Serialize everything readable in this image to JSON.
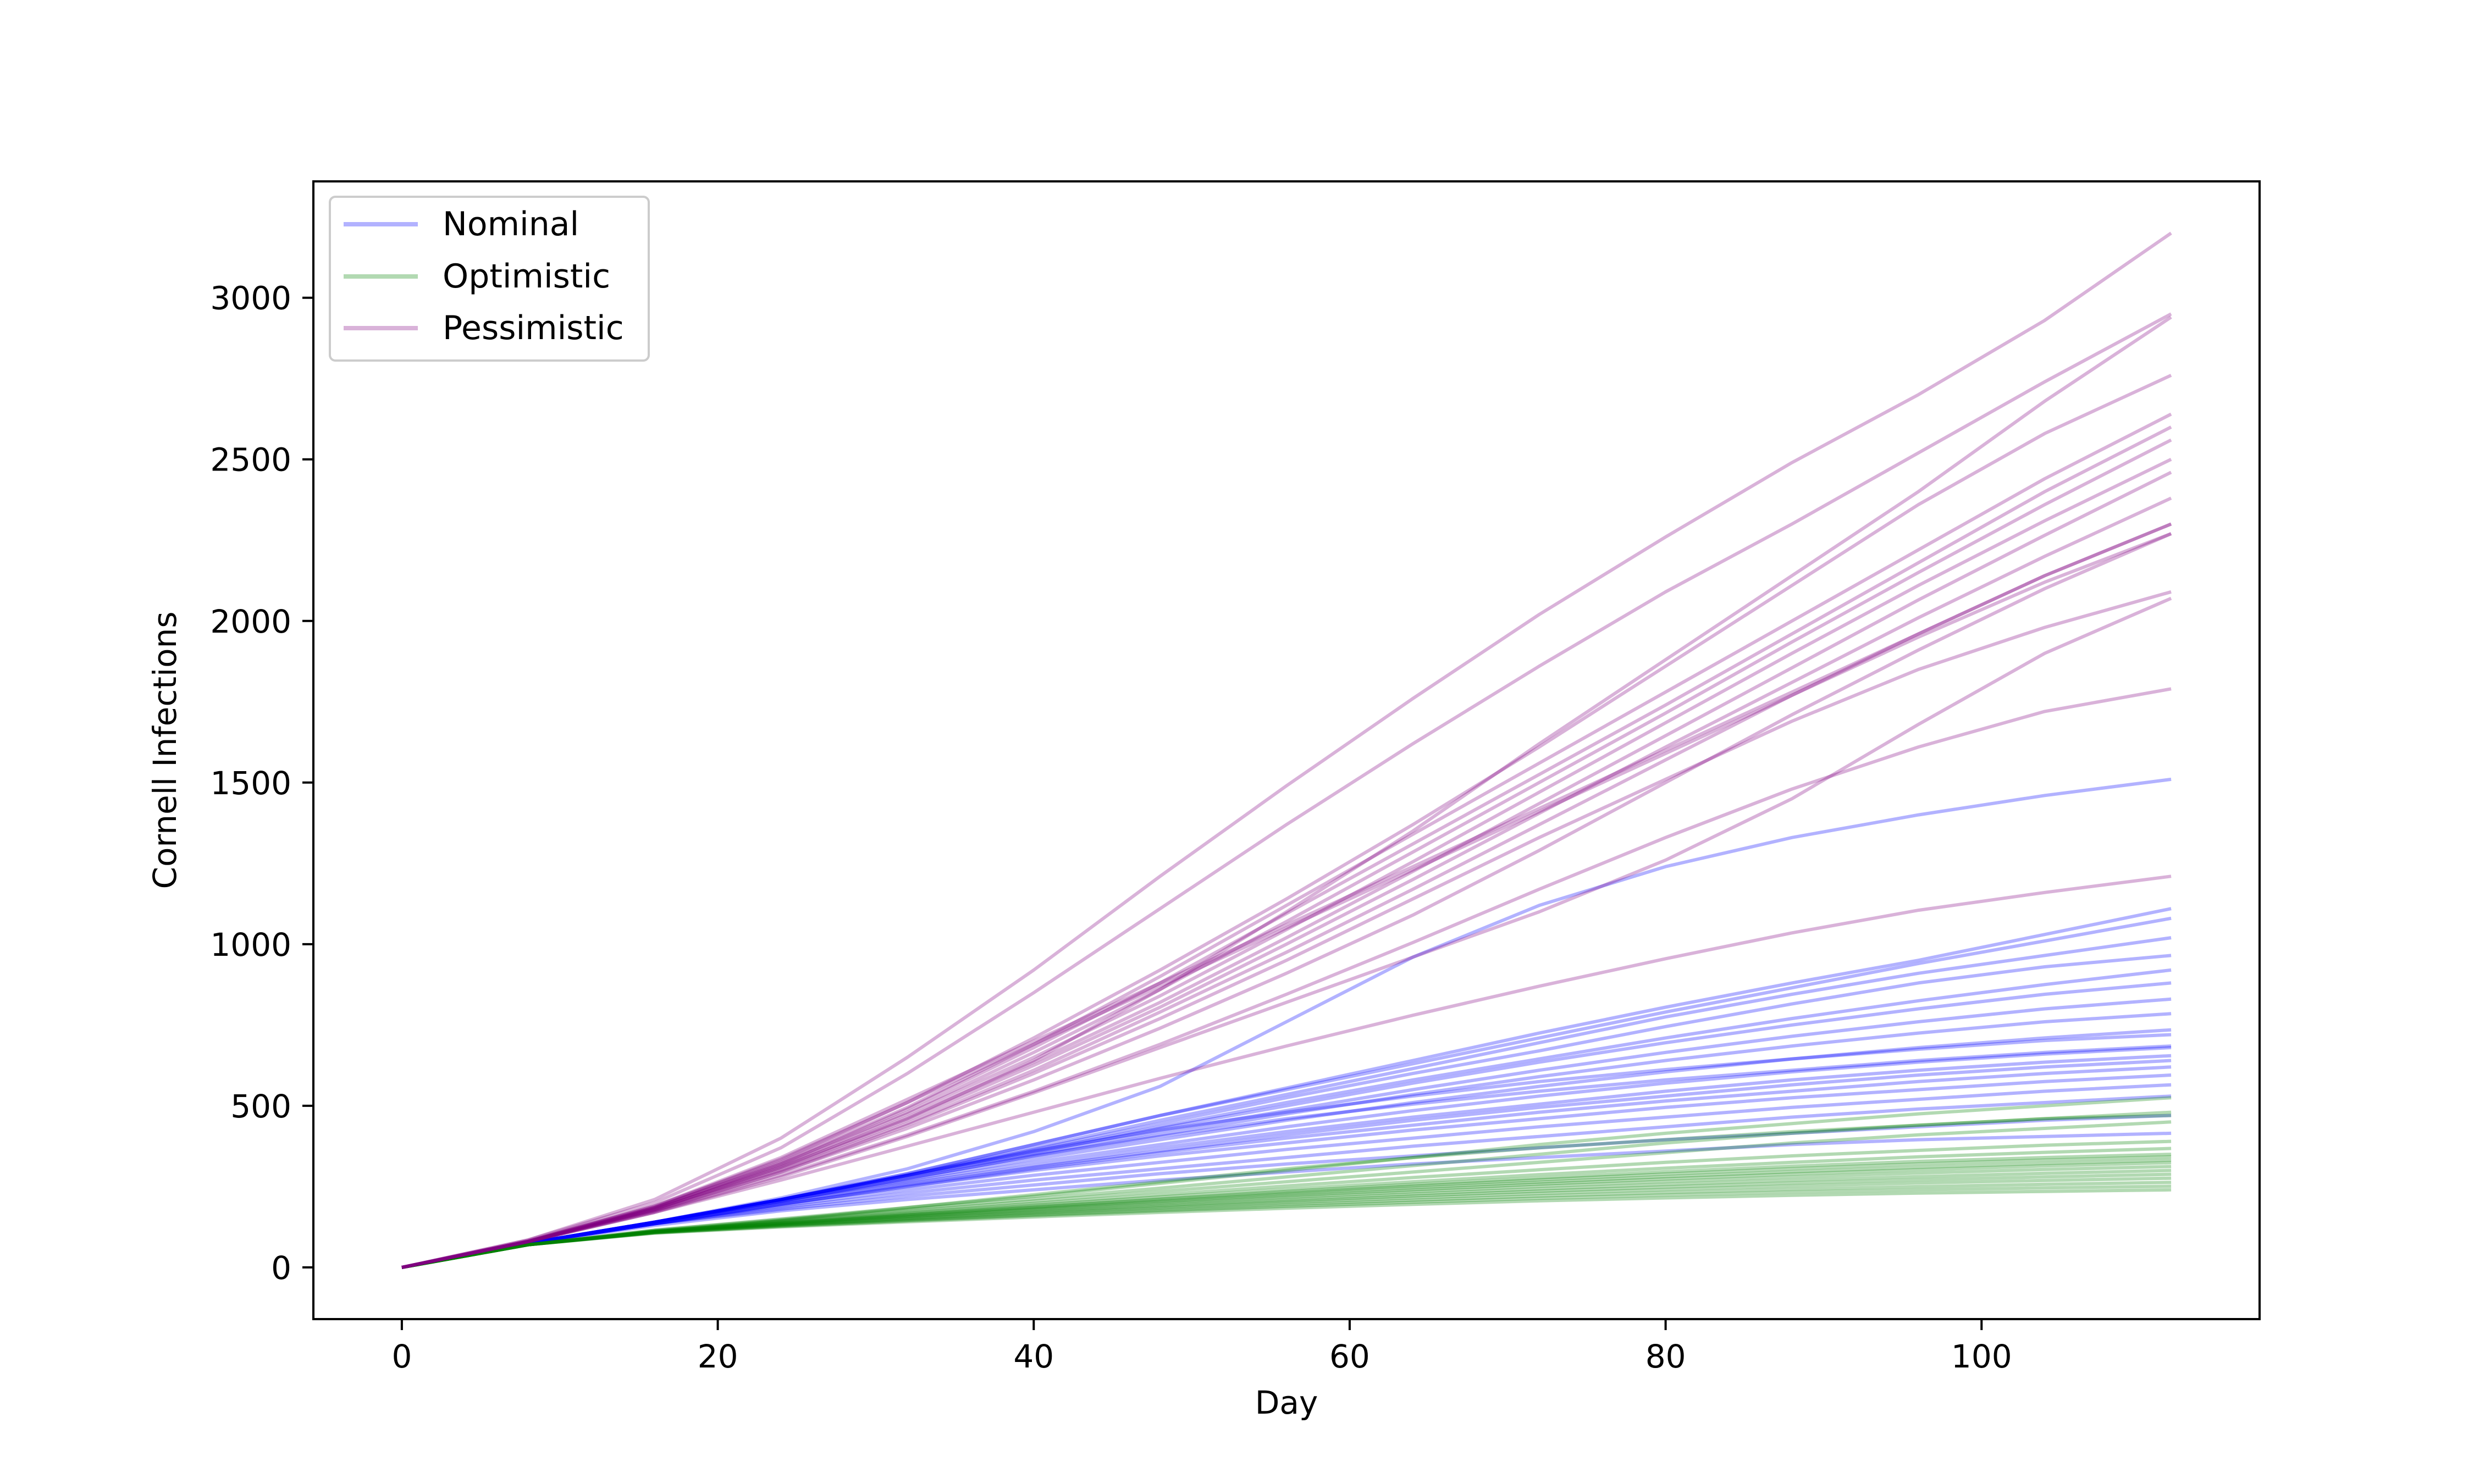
{
  "chart_data": {
    "type": "line",
    "title": "",
    "xlabel": "Day",
    "ylabel": "Cornell Infections",
    "xlim": [
      -5.6,
      117.6
    ],
    "ylim": [
      -160,
      3360
    ],
    "xticks": [
      0,
      20,
      40,
      60,
      80,
      100
    ],
    "yticks": [
      0,
      500,
      1000,
      1500,
      2000,
      2500,
      3000
    ],
    "grid": false,
    "legend_position": "top-left",
    "x": [
      0,
      8,
      16,
      24,
      32,
      40,
      48,
      56,
      64,
      72,
      80,
      88,
      96,
      104,
      112
    ],
    "series": [
      {
        "name": "Nominal",
        "color": "#0000ff",
        "lines": [
          [
            0,
            75,
            140,
            210,
            285,
            360,
            425,
            480,
            530,
            575,
            612,
            645,
            675,
            702,
            720
          ],
          [
            0,
            75,
            140,
            205,
            275,
            345,
            405,
            460,
            505,
            545,
            580,
            610,
            640,
            665,
            685
          ],
          [
            0,
            75,
            140,
            210,
            290,
            380,
            470,
            555,
            640,
            725,
            805,
            880,
            950,
            1030,
            1110
          ],
          [
            0,
            75,
            140,
            210,
            290,
            380,
            470,
            550,
            630,
            710,
            790,
            865,
            940,
            1010,
            1080
          ],
          [
            0,
            75,
            140,
            210,
            285,
            370,
            455,
            535,
            615,
            695,
            775,
            845,
            910,
            965,
            1020
          ],
          [
            0,
            75,
            140,
            210,
            285,
            365,
            445,
            525,
            600,
            670,
            745,
            815,
            880,
            930,
            965
          ],
          [
            0,
            75,
            140,
            210,
            285,
            360,
            435,
            510,
            580,
            645,
            710,
            770,
            825,
            875,
            920
          ],
          [
            0,
            75,
            140,
            210,
            285,
            355,
            430,
            500,
            570,
            635,
            695,
            750,
            800,
            845,
            880
          ],
          [
            0,
            75,
            140,
            210,
            280,
            350,
            420,
            485,
            550,
            610,
            665,
            715,
            760,
            800,
            830
          ],
          [
            0,
            75,
            140,
            205,
            275,
            345,
            410,
            475,
            535,
            590,
            640,
            685,
            725,
            760,
            785
          ],
          [
            0,
            75,
            140,
            205,
            270,
            335,
            395,
            455,
            510,
            560,
            605,
            645,
            680,
            710,
            735
          ],
          [
            0,
            75,
            140,
            205,
            265,
            325,
            380,
            435,
            485,
            530,
            570,
            605,
            635,
            660,
            680
          ],
          [
            0,
            75,
            135,
            200,
            260,
            315,
            370,
            420,
            465,
            505,
            545,
            580,
            610,
            635,
            655
          ],
          [
            0,
            75,
            135,
            195,
            255,
            310,
            360,
            410,
            455,
            495,
            530,
            565,
            595,
            620,
            640
          ],
          [
            0,
            75,
            135,
            195,
            250,
            305,
            355,
            400,
            440,
            480,
            515,
            545,
            575,
            600,
            620
          ],
          [
            0,
            75,
            135,
            195,
            250,
            300,
            345,
            385,
            425,
            460,
            495,
            525,
            550,
            575,
            595
          ],
          [
            0,
            75,
            135,
            190,
            240,
            285,
            325,
            365,
            400,
            435,
            465,
            495,
            520,
            545,
            565
          ],
          [
            0,
            75,
            135,
            185,
            230,
            270,
            305,
            340,
            375,
            405,
            435,
            465,
            490,
            510,
            530
          ],
          [
            0,
            75,
            135,
            180,
            220,
            255,
            290,
            320,
            345,
            370,
            395,
            415,
            435,
            455,
            470
          ],
          [
            0,
            75,
            130,
            175,
            210,
            240,
            270,
            295,
            320,
            340,
            360,
            380,
            395,
            405,
            415
          ],
          [
            0,
            75,
            140,
            215,
            305,
            420,
            560,
            760,
            960,
            1120,
            1240,
            1330,
            1400,
            1460,
            1510
          ]
        ]
      },
      {
        "name": "Optimistic",
        "color": "#008000",
        "lines": [
          [
            0,
            70,
            115,
            150,
            185,
            220,
            260,
            300,
            340,
            380,
            415,
            445,
            475,
            500,
            525
          ],
          [
            0,
            70,
            115,
            148,
            180,
            212,
            245,
            280,
            315,
            350,
            385,
            415,
            440,
            460,
            480
          ],
          [
            0,
            70,
            113,
            145,
            175,
            205,
            235,
            265,
            295,
            325,
            355,
            385,
            410,
            430,
            450
          ],
          [
            0,
            70,
            112,
            142,
            170,
            198,
            225,
            252,
            278,
            302,
            325,
            345,
            362,
            378,
            390
          ],
          [
            0,
            70,
            112,
            140,
            167,
            193,
            218,
            242,
            265,
            287,
            307,
            325,
            342,
            356,
            368
          ],
          [
            0,
            70,
            111,
            138,
            164,
            188,
            212,
            235,
            257,
            277,
            296,
            313,
            328,
            340,
            350
          ],
          [
            0,
            70,
            111,
            137,
            162,
            186,
            209,
            231,
            252,
            271,
            289,
            305,
            320,
            332,
            342
          ],
          [
            0,
            70,
            110,
            136,
            160,
            183,
            205,
            226,
            246,
            264,
            281,
            296,
            310,
            322,
            332
          ],
          [
            0,
            70,
            110,
            135,
            158,
            180,
            201,
            221,
            240,
            258,
            274,
            289,
            302,
            314,
            324
          ],
          [
            0,
            70,
            109,
            134,
            156,
            177,
            197,
            216,
            234,
            251,
            266,
            280,
            292,
            303,
            312
          ],
          [
            0,
            70,
            109,
            132,
            153,
            173,
            192,
            210,
            227,
            243,
            257,
            270,
            281,
            291,
            300
          ],
          [
            0,
            70,
            108,
            131,
            151,
            170,
            188,
            205,
            221,
            236,
            249,
            261,
            271,
            280,
            288
          ],
          [
            0,
            70,
            108,
            130,
            149,
            167,
            184,
            200,
            215,
            229,
            241,
            252,
            261,
            269,
            276
          ],
          [
            0,
            70,
            107,
            128,
            146,
            163,
            179,
            194,
            208,
            221,
            232,
            242,
            250,
            257,
            263
          ],
          [
            0,
            70,
            107,
            127,
            144,
            160,
            175,
            189,
            202,
            214,
            224,
            233,
            240,
            246,
            251
          ],
          [
            0,
            70,
            106,
            125,
            141,
            156,
            170,
            183,
            195,
            206,
            215,
            223,
            230,
            235,
            240
          ],
          [
            0,
            70,
            110,
            145,
            185,
            225,
            265,
            305,
            340,
            370,
            395,
            420,
            440,
            460,
            470
          ]
        ]
      },
      {
        "name": "Pessimistic",
        "color": "#800080",
        "lines": [
          [
            0,
            85,
            210,
            400,
            650,
            920,
            1210,
            1490,
            1760,
            2020,
            2260,
            2490,
            2700,
            2930,
            3200
          ],
          [
            0,
            85,
            200,
            370,
            600,
            850,
            1110,
            1370,
            1620,
            1860,
            2090,
            2300,
            2520,
            2740,
            2950
          ],
          [
            0,
            80,
            180,
            310,
            460,
            640,
            860,
            1100,
            1350,
            1620,
            1880,
            2140,
            2400,
            2680,
            2940
          ],
          [
            0,
            80,
            190,
            330,
            510,
            710,
            920,
            1140,
            1370,
            1610,
            1860,
            2110,
            2360,
            2580,
            2760
          ],
          [
            0,
            80,
            185,
            325,
            495,
            690,
            900,
            1120,
            1340,
            1560,
            1780,
            2000,
            2220,
            2440,
            2640
          ],
          [
            0,
            80,
            185,
            320,
            490,
            680,
            880,
            1095,
            1310,
            1525,
            1740,
            1960,
            2180,
            2400,
            2600
          ],
          [
            0,
            80,
            185,
            320,
            480,
            665,
            860,
            1070,
            1285,
            1500,
            1715,
            1935,
            2150,
            2360,
            2560
          ],
          [
            0,
            80,
            182,
            315,
            475,
            650,
            840,
            1045,
            1255,
            1470,
            1685,
            1900,
            2110,
            2310,
            2500
          ],
          [
            0,
            80,
            180,
            310,
            465,
            635,
            820,
            1020,
            1225,
            1435,
            1645,
            1855,
            2065,
            2265,
            2460
          ],
          [
            0,
            80,
            180,
            305,
            455,
            625,
            805,
            1000,
            1200,
            1405,
            1610,
            1810,
            2010,
            2200,
            2380
          ],
          [
            0,
            80,
            178,
            300,
            445,
            610,
            790,
            975,
            1170,
            1370,
            1570,
            1770,
            1960,
            2140,
            2300
          ],
          [
            0,
            80,
            175,
            295,
            430,
            580,
            740,
            910,
            1090,
            1290,
            1500,
            1710,
            1910,
            2100,
            2270
          ],
          [
            0,
            80,
            175,
            295,
            440,
            600,
            770,
            950,
            1140,
            1330,
            1510,
            1690,
            1850,
            1980,
            2090
          ],
          [
            0,
            80,
            170,
            280,
            405,
            540,
            680,
            820,
            960,
            1100,
            1260,
            1450,
            1680,
            1900,
            2070
          ],
          [
            0,
            80,
            172,
            285,
            410,
            545,
            690,
            845,
            1005,
            1170,
            1330,
            1480,
            1610,
            1720,
            1790
          ],
          [
            0,
            80,
            170,
            270,
            375,
            480,
            585,
            685,
            780,
            870,
            955,
            1035,
            1105,
            1160,
            1210
          ],
          [
            0,
            82,
            190,
            340,
            520,
            700,
            880,
            1060,
            1240,
            1420,
            1600,
            1780,
            1960,
            2140,
            2300
          ],
          [
            0,
            82,
            188,
            335,
            510,
            690,
            870,
            1050,
            1230,
            1410,
            1590,
            1770,
            1950,
            2120,
            2270
          ]
        ]
      }
    ]
  }
}
